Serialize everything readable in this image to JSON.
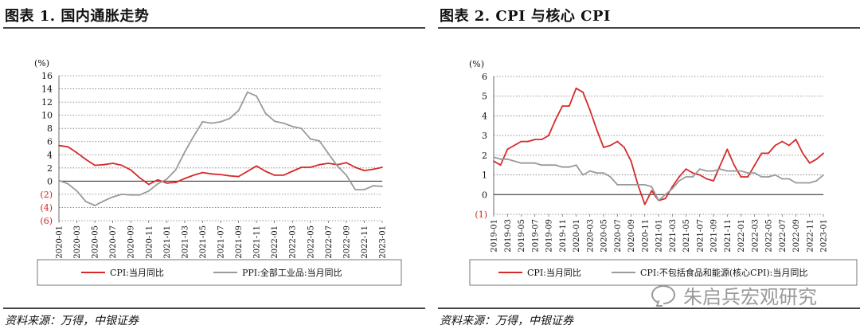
{
  "panel1": {
    "title": "图表 1. 国内通胀走势",
    "source": "资料来源：万得，中银证券"
  },
  "panel2": {
    "title": "图表 2. CPI 与核心 CPI",
    "source": "资料来源：万得，中银证券"
  },
  "watermark": {
    "text": "朱启兵宏观研究",
    "icon": "wechat-icon"
  },
  "colors": {
    "red": "#d62a2a",
    "gray": "#9a9a9a",
    "negtick": "#cc2222"
  },
  "chart_data": [
    {
      "type": "line",
      "title": "图表 1. 国内通胀走势",
      "ylabel": "(%)",
      "ylim": [
        -6,
        16
      ],
      "yticks": [
        16,
        14,
        12,
        10,
        8,
        6,
        4,
        2,
        0,
        -2,
        -4,
        -6
      ],
      "ytick_labels": [
        "16",
        "14",
        "12",
        "10",
        "8",
        "6",
        "4",
        "2",
        "0",
        "(2)",
        "(4)",
        "(6)"
      ],
      "x_start": "2020-01",
      "x_count": 37,
      "xtick_labels": [
        "2020-01",
        "2020-03",
        "2020-05",
        "2020-07",
        "2020-09",
        "2020-11",
        "2021-01",
        "2021-03",
        "2021-05",
        "2021-07",
        "2021-09",
        "2021-11",
        "2022-01",
        "2022-03",
        "2022-05",
        "2022-07",
        "2022-09",
        "2022-11",
        "2023-01"
      ],
      "grid": true,
      "legend": "bottom",
      "series": [
        {
          "name": "CPI:当月同比",
          "color": "red",
          "values": [
            5.4,
            5.2,
            4.3,
            3.3,
            2.4,
            2.5,
            2.7,
            2.4,
            1.7,
            0.5,
            -0.5,
            0.2,
            -0.3,
            -0.2,
            0.4,
            0.9,
            1.3,
            1.1,
            1.0,
            0.8,
            0.7,
            1.5,
            2.3,
            1.5,
            0.9,
            0.9,
            1.5,
            2.1,
            2.1,
            2.5,
            2.7,
            2.5,
            2.8,
            2.1,
            1.6,
            1.8,
            2.1
          ]
        },
        {
          "name": "PPI:全部工业品:当月同比",
          "color": "gray",
          "values": [
            0.1,
            -0.4,
            -1.5,
            -3.1,
            -3.7,
            -3.0,
            -2.4,
            -2.0,
            -2.1,
            -2.1,
            -1.5,
            -0.4,
            0.3,
            1.7,
            4.4,
            6.8,
            9.0,
            8.8,
            9.0,
            9.5,
            10.7,
            13.5,
            12.9,
            10.3,
            9.1,
            8.8,
            8.3,
            8.0,
            6.4,
            6.1,
            4.2,
            2.3,
            0.9,
            -1.3,
            -1.3,
            -0.7,
            -0.8
          ]
        }
      ]
    },
    {
      "type": "line",
      "title": "图表 2. CPI 与核心 CPI",
      "ylabel": "(%)",
      "ylim": [
        -1,
        6
      ],
      "yticks": [
        6,
        5,
        4,
        3,
        2,
        1,
        0,
        -1
      ],
      "ytick_labels": [
        "6",
        "5",
        "4",
        "3",
        "2",
        "1",
        "0",
        "(1)"
      ],
      "x_start": "2019-01",
      "x_count": 49,
      "xtick_labels": [
        "2019-01",
        "2019-03",
        "2019-05",
        "2019-07",
        "2019-09",
        "2019-11",
        "2020-01",
        "2020-03",
        "2020-05",
        "2020-07",
        "2020-09",
        "2020-11",
        "2021-01",
        "2021-03",
        "2021-05",
        "2021-07",
        "2021-09",
        "2021-11",
        "2022-01",
        "2022-03",
        "2022-05",
        "2022-07",
        "2022-09",
        "2022-11",
        "2023-01"
      ],
      "grid": true,
      "legend": "bottom",
      "series": [
        {
          "name": "CPI:当月同比",
          "color": "red",
          "values": [
            1.7,
            1.5,
            2.3,
            2.5,
            2.7,
            2.7,
            2.8,
            2.8,
            3.0,
            3.8,
            4.5,
            4.5,
            5.4,
            5.2,
            4.3,
            3.3,
            2.4,
            2.5,
            2.7,
            2.4,
            1.7,
            0.5,
            -0.5,
            0.2,
            -0.3,
            -0.2,
            0.4,
            0.9,
            1.3,
            1.1,
            1.0,
            0.8,
            0.7,
            1.5,
            2.3,
            1.5,
            0.9,
            0.9,
            1.5,
            2.1,
            2.1,
            2.5,
            2.7,
            2.5,
            2.8,
            2.1,
            1.6,
            1.8,
            2.1
          ]
        },
        {
          "name": "CPI:不包括食品和能源(核心CPI):当月同比",
          "color": "gray",
          "values": [
            1.9,
            1.8,
            1.8,
            1.7,
            1.6,
            1.6,
            1.6,
            1.5,
            1.5,
            1.5,
            1.4,
            1.4,
            1.5,
            1.0,
            1.2,
            1.1,
            1.1,
            0.9,
            0.5,
            0.5,
            0.5,
            0.5,
            0.5,
            0.4,
            -0.3,
            0.0,
            0.3,
            0.7,
            0.9,
            0.9,
            1.3,
            1.2,
            1.2,
            1.3,
            1.2,
            1.2,
            1.2,
            1.1,
            1.1,
            0.9,
            0.9,
            1.0,
            0.8,
            0.8,
            0.6,
            0.6,
            0.6,
            0.7,
            1.0
          ]
        }
      ]
    }
  ]
}
